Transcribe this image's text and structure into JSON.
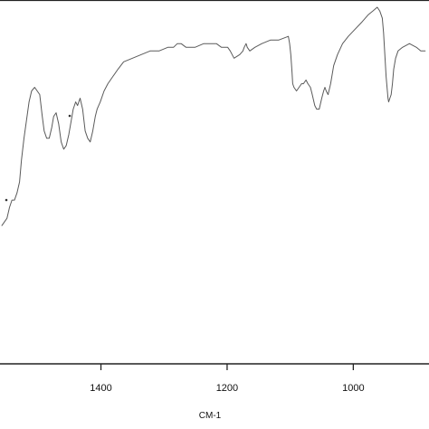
{
  "chart_data": {
    "type": "line",
    "title": "",
    "xlabel": "CM-1",
    "ylabel": "",
    "x_reversed": true,
    "xlim": [
      1560,
      880
    ],
    "ylim": [
      0,
      100
    ],
    "grid": false,
    "legend": "none",
    "line_color": "#5a5a5a",
    "xticks": [
      {
        "value": 1400,
        "label": "1400"
      },
      {
        "value": 1200,
        "label": "1200"
      },
      {
        "value": 1000,
        "label": "1000"
      }
    ],
    "series": [
      {
        "name": "",
        "x": [
          1557,
          1553,
          1549,
          1545,
          1541,
          1537,
          1533,
          1529,
          1526,
          1522,
          1518,
          1514,
          1510,
          1505,
          1501,
          1497,
          1493,
          1490,
          1486,
          1482,
          1478,
          1475,
          1471,
          1467,
          1463,
          1459,
          1455,
          1451,
          1448,
          1444,
          1440,
          1437,
          1433,
          1429,
          1425,
          1421,
          1417,
          1413,
          1409,
          1406,
          1401,
          1395,
          1389,
          1381,
          1373,
          1364,
          1350,
          1336,
          1322,
          1308,
          1294,
          1285,
          1279,
          1273,
          1265,
          1251,
          1237,
          1225,
          1217,
          1209,
          1203,
          1199,
          1195,
          1189,
          1180,
          1175,
          1173,
          1170,
          1168,
          1164,
          1156,
          1145,
          1131,
          1118,
          1103,
          1101,
          1099,
          1097,
          1096,
          1094,
          1090,
          1086,
          1082,
          1079,
          1075,
          1072,
          1068,
          1065,
          1061,
          1058,
          1054,
          1050,
          1047,
          1045,
          1043,
          1040,
          1036,
          1031,
          1025,
          1017,
          1008,
          997,
          986,
          976,
          969,
          962,
          958,
          954,
          952,
          950,
          948,
          946,
          945,
          944,
          942,
          940,
          938,
          936,
          933,
          929,
          922,
          911,
          900,
          893,
          886
        ],
        "y": [
          38,
          39,
          40,
          43,
          45,
          45,
          47,
          50,
          56,
          62,
          67,
          72,
          75,
          76,
          75,
          74,
          68,
          64,
          62,
          62,
          65,
          68,
          69,
          66,
          61,
          59,
          60,
          63,
          66,
          70,
          72,
          71,
          73,
          70,
          64,
          62,
          61,
          64,
          68,
          70,
          72,
          75,
          77,
          79,
          81,
          83,
          84,
          85,
          86,
          86,
          87,
          87,
          88,
          88,
          87,
          87,
          88,
          88,
          88,
          87,
          87,
          87,
          86,
          84,
          85,
          86,
          87,
          88,
          87,
          86,
          87,
          88,
          89,
          89,
          90,
          88,
          85,
          80,
          77,
          76,
          75,
          76,
          77,
          77,
          78,
          77,
          76,
          74,
          71,
          70,
          70,
          73,
          75,
          76,
          75,
          74,
          77,
          82,
          85,
          88,
          90,
          92,
          94,
          96,
          97,
          98,
          97,
          95,
          91,
          85,
          79,
          75,
          73,
          72,
          73,
          74,
          77,
          81,
          84,
          86,
          87,
          88,
          87,
          86,
          86
        ]
      }
    ],
    "annotations": []
  }
}
